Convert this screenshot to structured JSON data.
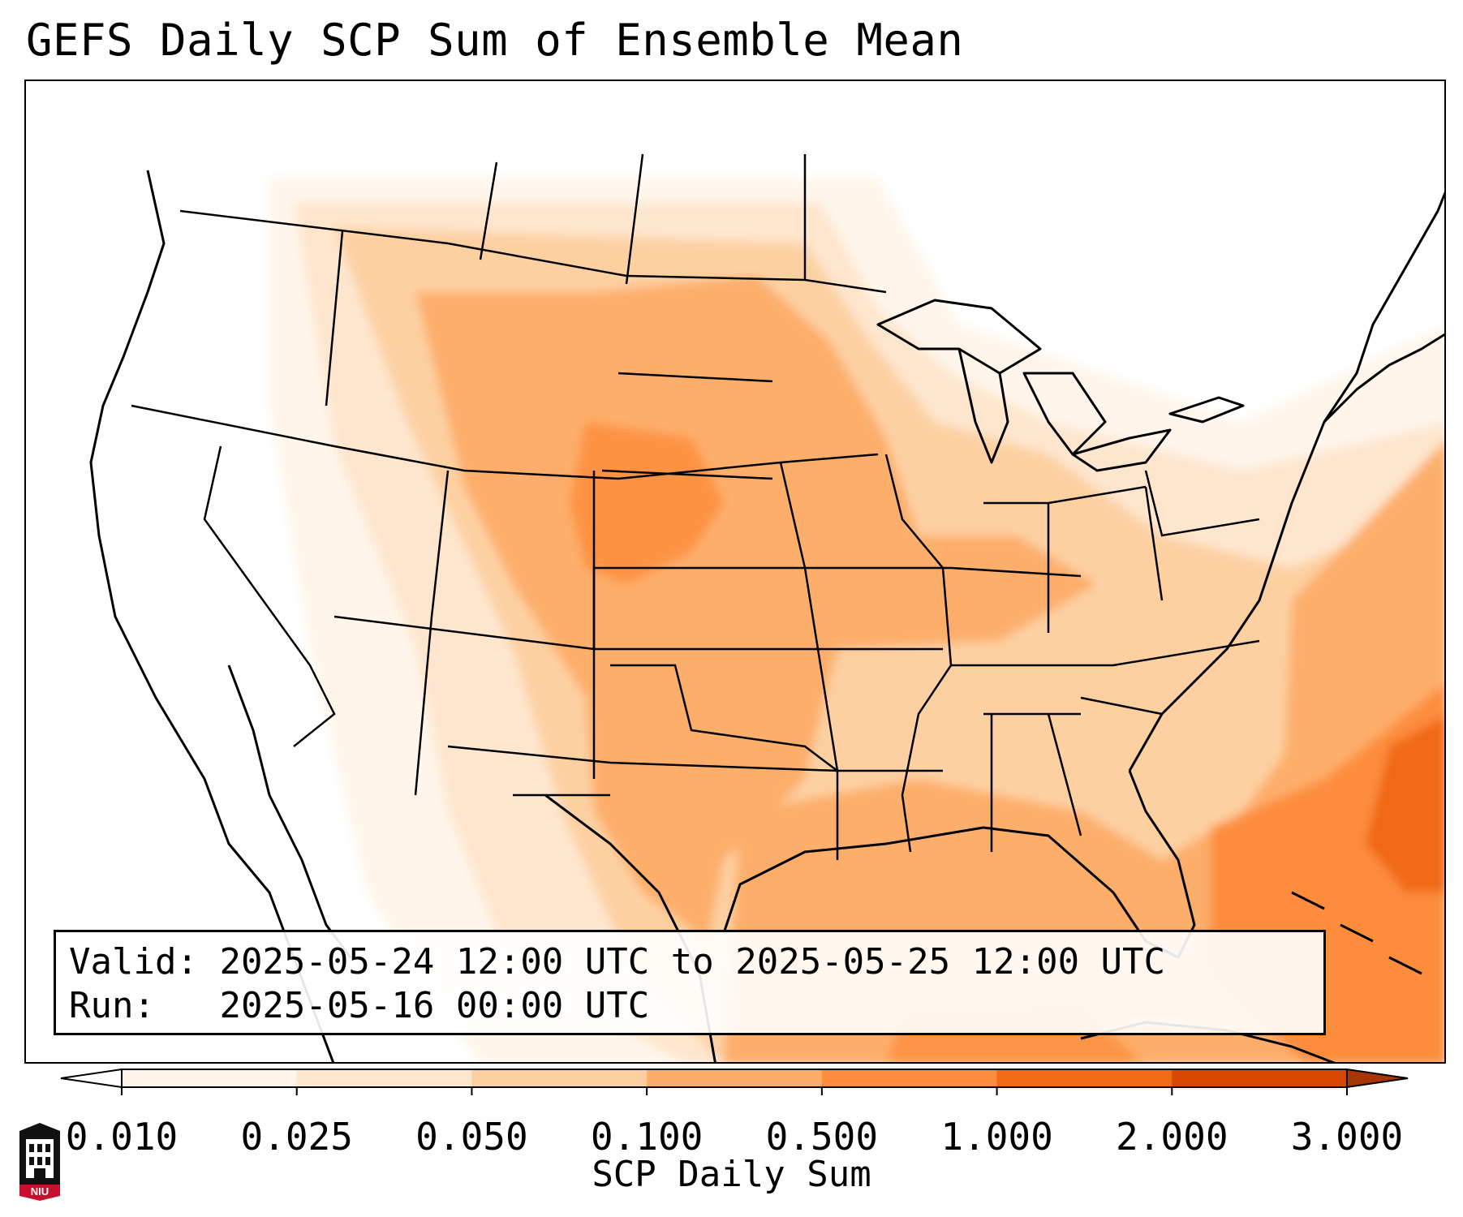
{
  "title": "GEFS Daily SCP Sum of Ensemble Mean",
  "info": {
    "valid_label": "Valid:",
    "valid_value": "2025-05-24 12:00 UTC to 2025-05-25 12:00 UTC",
    "run_label": "Run:",
    "run_value": "2025-05-16 00:00 UTC"
  },
  "colorbar": {
    "label": "SCP Daily Sum",
    "ticks": [
      "0.010",
      "0.025",
      "0.050",
      "0.100",
      "0.500",
      "1.000",
      "2.000",
      "3.000"
    ],
    "colors": [
      "#fff5eb",
      "#fee6ce",
      "#fdd0a2",
      "#fdae6b",
      "#fd8d3c",
      "#f16913",
      "#d94801",
      "#a63603"
    ],
    "extend": "both"
  },
  "map": {
    "projection": "lambert-conformal",
    "region": "CONUS",
    "field": "SCP daily sum ensemble mean",
    "max_region": "western Atlantic east of Florida and the Bahamas",
    "secondary_max_region": "central Plains (Nebraska, Kansas, eastern Colorado)",
    "zero_regions": [
      "California",
      "Nevada",
      "Utah",
      "Arizona",
      "Pacific Northwest coast",
      "Canada"
    ]
  },
  "logo": {
    "text": "NIU",
    "color": "#c8102e"
  }
}
